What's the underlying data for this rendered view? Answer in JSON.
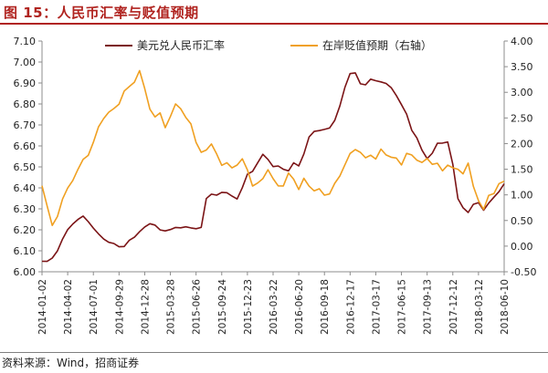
{
  "figure": {
    "title": "图 15：人民币汇率与贬值预期",
    "source": "资料来源：Wind，招商证券"
  },
  "colors": {
    "title": "#b0231f",
    "cny": "#7b1416",
    "exp": "#f0a021",
    "axis": "#8c8c8c"
  },
  "chart_data": {
    "type": "line",
    "title": "",
    "xlabel": "",
    "ylabel": "",
    "y2label": "",
    "ylim": [
      6.0,
      7.1
    ],
    "y2lim": [
      -0.5,
      4.0
    ],
    "yticks": [
      "6.00",
      "6.10",
      "6.20",
      "6.30",
      "6.40",
      "6.50",
      "6.60",
      "6.70",
      "6.80",
      "6.90",
      "7.00",
      "7.10"
    ],
    "y2ticks": [
      "-0.50",
      "0.00",
      "0.50",
      "1.00",
      "1.50",
      "2.00",
      "2.50",
      "3.00",
      "3.50",
      "4.00"
    ],
    "x_categories": [
      "2014-01-02",
      "2014-04-02",
      "2014-07-01",
      "2014-09-29",
      "2014-12-28",
      "2015-03-28",
      "2015-06-26",
      "2015-09-24",
      "2015-12-23",
      "2016-03-22",
      "2016-06-20",
      "2016-09-18",
      "2016-12-17",
      "2017-03-17",
      "2017-06-15",
      "2017-09-13",
      "2017-12-12",
      "2018-03-12",
      "2018-06-10"
    ],
    "legend": "top",
    "grid": false,
    "series": [
      {
        "name": "美元兑人民币汇率",
        "axis": "left",
        "color": "#7b1416",
        "x": [
          0,
          0.2,
          0.4,
          0.6,
          0.8,
          1.0,
          1.2,
          1.4,
          1.6,
          1.8,
          2.0,
          2.2,
          2.4,
          2.6,
          2.8,
          3.0,
          3.2,
          3.4,
          3.6,
          3.8,
          4.0,
          4.2,
          4.4,
          4.6,
          4.8,
          5.0,
          5.2,
          5.4,
          5.6,
          5.8,
          6.0,
          6.2,
          6.4,
          6.6,
          6.8,
          7.0,
          7.2,
          7.4,
          7.6,
          7.8,
          8.0,
          8.2,
          8.4,
          8.6,
          8.8,
          9.0,
          9.2,
          9.4,
          9.6,
          9.8,
          10.0,
          10.2,
          10.4,
          10.6,
          10.8,
          11.0,
          11.2,
          11.4,
          11.6,
          11.8,
          12.0,
          12.2,
          12.4,
          12.6,
          12.8,
          13.0,
          13.2,
          13.4,
          13.6,
          13.8,
          14.0,
          14.2,
          14.4,
          14.6,
          14.8,
          15.0,
          15.2,
          15.4,
          15.6,
          15.8,
          16.0,
          16.2,
          16.4,
          16.6,
          16.8,
          17.0,
          17.2,
          17.4,
          17.6,
          17.8,
          18.0
        ],
        "values": [
          6.05,
          6.05,
          6.06,
          6.1,
          6.16,
          6.2,
          6.23,
          6.25,
          6.26,
          6.24,
          6.21,
          6.18,
          6.16,
          6.14,
          6.13,
          6.12,
          6.12,
          6.15,
          6.17,
          6.19,
          6.21,
          6.23,
          6.22,
          6.2,
          6.2,
          6.2,
          6.21,
          6.21,
          6.21,
          6.21,
          6.21,
          6.21,
          6.35,
          6.37,
          6.36,
          6.38,
          6.38,
          6.36,
          6.35,
          6.4,
          6.46,
          6.48,
          6.52,
          6.56,
          6.54,
          6.5,
          6.5,
          6.49,
          6.48,
          6.52,
          6.51,
          6.56,
          6.64,
          6.67,
          6.67,
          6.68,
          6.69,
          6.72,
          6.79,
          6.88,
          6.94,
          6.95,
          6.9,
          6.89,
          6.92,
          6.91,
          6.9,
          6.9,
          6.88,
          6.84,
          6.8,
          6.75,
          6.67,
          6.64,
          6.58,
          6.54,
          6.57,
          6.61,
          6.61,
          6.62,
          6.51,
          6.35,
          6.31,
          6.28,
          6.32,
          6.33,
          6.29,
          6.33,
          6.36,
          6.38,
          6.42
        ]
      },
      {
        "name": "在岸贬值预期（右轴）",
        "axis": "right",
        "color": "#f0a021",
        "x": [
          0,
          0.2,
          0.4,
          0.6,
          0.8,
          1.0,
          1.2,
          1.4,
          1.6,
          1.8,
          2.0,
          2.2,
          2.4,
          2.6,
          2.8,
          3.0,
          3.2,
          3.4,
          3.6,
          3.8,
          4.0,
          4.2,
          4.4,
          4.6,
          4.8,
          5.0,
          5.2,
          5.4,
          5.6,
          5.8,
          6.0,
          6.2,
          6.4,
          6.6,
          6.8,
          7.0,
          7.2,
          7.4,
          7.6,
          7.8,
          8.0,
          8.2,
          8.4,
          8.6,
          8.8,
          9.0,
          9.2,
          9.4,
          9.6,
          9.8,
          10.0,
          10.2,
          10.4,
          10.6,
          10.8,
          11.0,
          11.2,
          11.4,
          11.6,
          11.8,
          12.0,
          12.2,
          12.4,
          12.6,
          12.8,
          13.0,
          13.2,
          13.4,
          13.6,
          13.8,
          14.0,
          14.2,
          14.4,
          14.6,
          14.8,
          15.0,
          15.2,
          15.4,
          15.6,
          15.8,
          16.0,
          16.2,
          16.4,
          16.6,
          16.8,
          17.0,
          17.2,
          17.4,
          17.6,
          17.8,
          18.0
        ],
        "values": [
          1.2,
          0.8,
          0.4,
          0.6,
          0.9,
          1.1,
          1.3,
          1.5,
          1.7,
          1.8,
          2.0,
          2.3,
          2.5,
          2.6,
          2.7,
          2.8,
          3.0,
          3.1,
          3.2,
          3.4,
          3.1,
          2.7,
          2.5,
          2.6,
          2.3,
          2.5,
          2.8,
          2.7,
          2.5,
          2.4,
          2.0,
          1.8,
          1.9,
          2.0,
          1.8,
          1.6,
          1.6,
          1.5,
          1.6,
          1.7,
          1.5,
          1.2,
          1.2,
          1.3,
          1.5,
          1.3,
          1.2,
          1.2,
          1.4,
          1.3,
          1.1,
          1.3,
          1.2,
          1.1,
          1.1,
          1.0,
          1.0,
          1.2,
          1.4,
          1.6,
          1.8,
          1.9,
          1.8,
          1.7,
          1.8,
          1.7,
          1.9,
          1.8,
          1.7,
          1.7,
          1.6,
          1.8,
          1.8,
          1.7,
          1.6,
          1.7,
          1.6,
          1.6,
          1.5,
          1.6,
          1.5,
          1.5,
          1.4,
          1.6,
          1.2,
          0.9,
          0.7,
          1.0,
          1.0,
          1.2,
          1.3
        ]
      }
    ]
  }
}
